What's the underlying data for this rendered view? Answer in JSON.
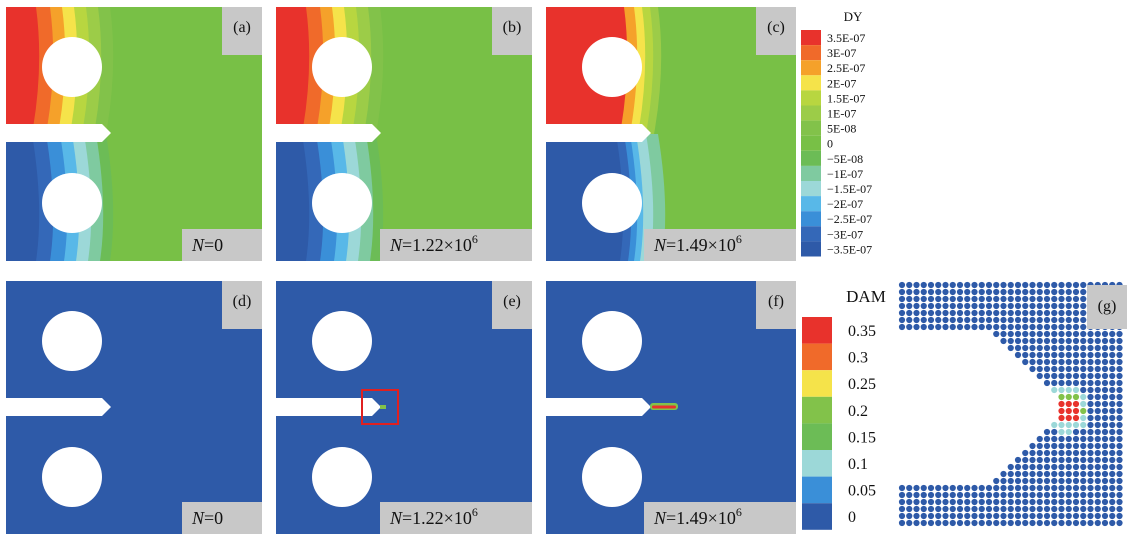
{
  "colors": {
    "blue": "#2e5aa8",
    "green": "#78c046",
    "white": "#ffffff",
    "label_bg": "#c8c8c8",
    "highlight": "#e02020"
  },
  "dy_legend": {
    "title": "DY",
    "entries": [
      {
        "label": "3.5E-07",
        "color": "#e8322c"
      },
      {
        "label": "3E-07",
        "color": "#f06a2a"
      },
      {
        "label": "2.5E-07",
        "color": "#f5a12a"
      },
      {
        "label": "2E-07",
        "color": "#f5e34a"
      },
      {
        "label": "1.5E-07",
        "color": "#b8d640"
      },
      {
        "label": "1E-07",
        "color": "#9ccc48"
      },
      {
        "label": "5E-08",
        "color": "#82c24a"
      },
      {
        "label": "0",
        "color": "#78c046"
      },
      {
        "label": "−5E-08",
        "color": "#6cbc56"
      },
      {
        "label": "−1E-07",
        "color": "#7fcaa0"
      },
      {
        "label": "−1.5E-07",
        "color": "#9cd8d8"
      },
      {
        "label": "−2E-07",
        "color": "#58b8e8"
      },
      {
        "label": "−2.5E-07",
        "color": "#3a8fd8"
      },
      {
        "label": "−3E-07",
        "color": "#3468b8"
      },
      {
        "label": "−3.5E-07",
        "color": "#2e5aa8"
      }
    ]
  },
  "dam_legend": {
    "title": "DAM",
    "entries": [
      {
        "label": "0.35",
        "color": "#e8322c"
      },
      {
        "label": "0.3",
        "color": "#f06a2a"
      },
      {
        "label": "0.25",
        "color": "#f5e34a"
      },
      {
        "label": "0.2",
        "color": "#82c24a"
      },
      {
        "label": "0.15",
        "color": "#6cbc56"
      },
      {
        "label": "0.1",
        "color": "#9cd8d8"
      },
      {
        "label": "0.05",
        "color": "#3a8fd8"
      },
      {
        "label": "0",
        "color": "#2e5aa8"
      }
    ]
  },
  "panels": [
    {
      "id": "a",
      "tag": "(a)",
      "n_label": "N=0",
      "n_sym": "N",
      "n_val": "=0",
      "n_exp": ""
    },
    {
      "id": "b",
      "tag": "(b)",
      "n_label": "N=1.22×10^6",
      "n_sym": "N",
      "n_val": "=1.22×10",
      "n_exp": "6"
    },
    {
      "id": "c",
      "tag": "(c)",
      "n_label": "N=1.49×10^6",
      "n_sym": "N",
      "n_val": "=1.49×10",
      "n_exp": "6"
    },
    {
      "id": "d",
      "tag": "(d)",
      "n_label": "N=0",
      "n_sym": "N",
      "n_val": "=0",
      "n_exp": ""
    },
    {
      "id": "e",
      "tag": "(e)",
      "n_label": "N=1.22×10^6",
      "n_sym": "N",
      "n_val": "=1.22×10",
      "n_exp": "6"
    },
    {
      "id": "f",
      "tag": "(f)",
      "n_label": "N=1.49×10^6",
      "n_sym": "N",
      "n_val": "=1.49×10",
      "n_exp": "6"
    },
    {
      "id": "g",
      "tag": "(g)"
    }
  ]
}
